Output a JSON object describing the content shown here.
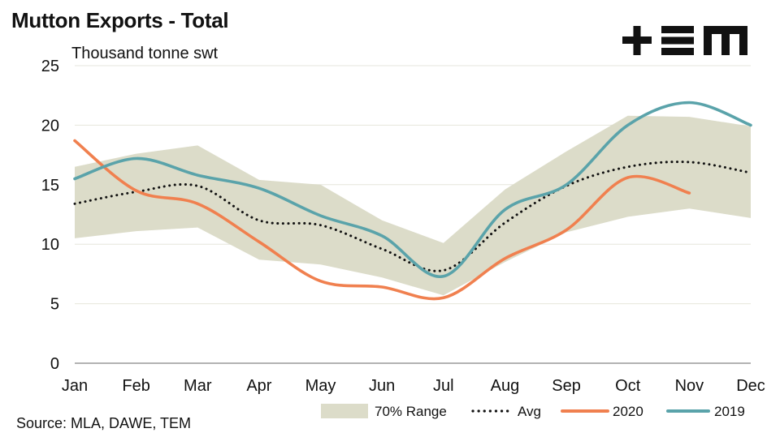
{
  "title": "Mutton Exports - Total",
  "source": "Source: MLA, DAWE, TEM",
  "brand": {
    "logo_name": "tem-logo",
    "color": "#111111"
  },
  "colors": {
    "range": "#dcdcc9",
    "avg": "#111111",
    "s2020": "#f0804f",
    "s2019": "#5aa3aa",
    "grid": "#e6e6dc",
    "axis": "#999999"
  },
  "chart_data": {
    "type": "line",
    "title": "Mutton Exports - Total",
    "ylabel": "Thousand tonne swt",
    "xlabel": "",
    "categories": [
      "Jan",
      "Feb",
      "Mar",
      "Apr",
      "May",
      "Jun",
      "Jul",
      "Aug",
      "Sep",
      "Oct",
      "Nov",
      "Dec"
    ],
    "ylim": [
      0,
      25
    ],
    "yticks": [
      0,
      5,
      10,
      15,
      20,
      25
    ],
    "grid": "horizontal",
    "legend_position": "bottom-right",
    "range": {
      "name": "70% Range",
      "upper": [
        16.5,
        17.6,
        18.3,
        15.4,
        15.0,
        12.0,
        10.1,
        14.6,
        17.8,
        20.8,
        20.7,
        19.9
      ],
      "lower": [
        10.5,
        11.1,
        11.4,
        8.7,
        8.3,
        7.2,
        5.7,
        8.5,
        11.0,
        12.3,
        13.0,
        12.2
      ]
    },
    "series": [
      {
        "name": "Avg",
        "style": "dotted",
        "values": [
          13.4,
          14.4,
          14.9,
          12.0,
          11.6,
          9.6,
          7.8,
          11.8,
          14.9,
          16.5,
          16.9,
          16.0
        ]
      },
      {
        "name": "2020",
        "style": "solid",
        "values": [
          18.7,
          14.5,
          13.4,
          10.2,
          6.9,
          6.4,
          5.5,
          8.8,
          11.2,
          15.6,
          14.3,
          null
        ]
      },
      {
        "name": "2019",
        "style": "solid",
        "values": [
          15.5,
          17.2,
          15.8,
          14.7,
          12.4,
          10.7,
          7.3,
          12.9,
          15.0,
          20.0,
          21.9,
          20.0
        ]
      }
    ]
  }
}
